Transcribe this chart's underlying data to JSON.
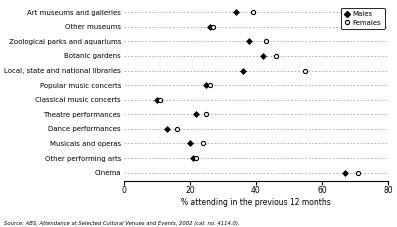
{
  "categories": [
    "Art museums and galleries",
    "Other museums",
    "Zoological parks and aquariums",
    "Botanic gardens",
    "Local, state and national libraries",
    "Popular music concerts",
    "Classical music concerts",
    "Theatre performances",
    "Dance performances",
    "Musicals and operas",
    "Other performing arts",
    "Cinema"
  ],
  "males": [
    34,
    26,
    38,
    42,
    36,
    25,
    10,
    22,
    13,
    20,
    21,
    67
  ],
  "females": [
    39,
    27,
    43,
    46,
    55,
    26,
    11,
    25,
    16,
    24,
    22,
    71
  ],
  "xlabel": "% attending in the previous 12 months",
  "xlim": [
    0,
    80
  ],
  "xticks": [
    0,
    20,
    40,
    60,
    80
  ],
  "legend_males": "Males",
  "legend_females": "Females",
  "source": "Source: ABS, Attendance at Selected Cultural Venues and Events, 2002 (cat. no. 4114.0).",
  "male_color": "#000000",
  "female_color": "#000000",
  "bg_color": "#ffffff",
  "dash_color": "#999999"
}
